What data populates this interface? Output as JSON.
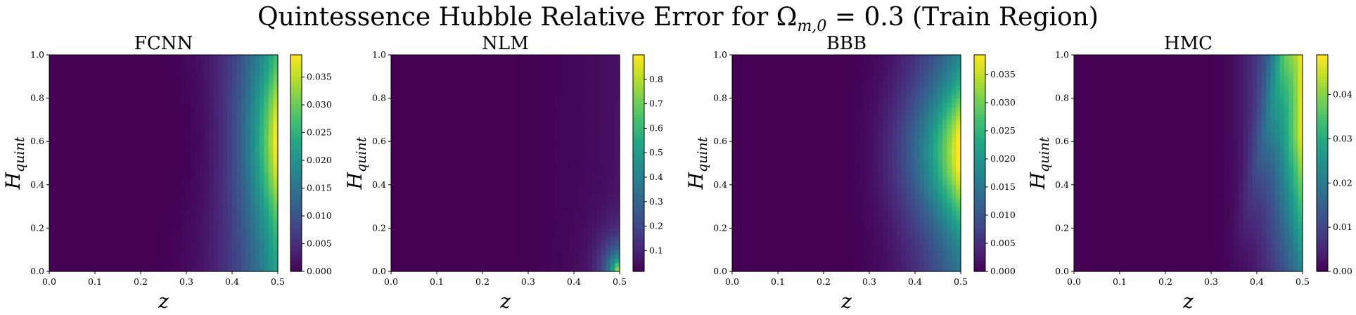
{
  "figure": {
    "title": "Quintessence Hubble Relative Error for Ω",
    "title_sub": "m,0",
    "title_rest": " = 0.3 (Train Region)"
  },
  "chart_data": [
    {
      "type": "heatmap",
      "title": "FCNN",
      "xlabel": "z",
      "ylabel": "H",
      "ylabel_sub": "quint",
      "xlim": [
        0,
        0.5
      ],
      "ylim": [
        0,
        1
      ],
      "xticks": [
        "0.0",
        "0.1",
        "0.2",
        "0.3",
        "0.4",
        "0.5"
      ],
      "yticks": [
        "0.0",
        "0.2",
        "0.4",
        "0.6",
        "0.8",
        "1.0"
      ],
      "colormap": "viridis",
      "colorbar": {
        "min": 0,
        "max": 0.039,
        "ticks": [
          "0.000",
          "0.005",
          "0.010",
          "0.015",
          "0.020",
          "0.025",
          "0.030",
          "0.035"
        ],
        "tick_values": [
          0,
          0.005,
          0.01,
          0.015,
          0.02,
          0.025,
          0.03,
          0.035
        ]
      },
      "pattern": "right-edge-bulge"
    },
    {
      "type": "heatmap",
      "title": "NLM",
      "xlabel": "z",
      "ylabel": "H",
      "ylabel_sub": "quint",
      "xlim": [
        0,
        0.5
      ],
      "ylim": [
        0,
        1
      ],
      "xticks": [
        "0.0",
        "0.1",
        "0.2",
        "0.3",
        "0.4",
        "0.5"
      ],
      "yticks": [
        "0.0",
        "0.2",
        "0.4",
        "0.6",
        "0.8",
        "1.0"
      ],
      "colormap": "viridis",
      "colorbar": {
        "min": 0.015,
        "max": 0.9,
        "ticks": [
          "0.1",
          "0.2",
          "0.3",
          "0.4",
          "0.5",
          "0.6",
          "0.7",
          "0.8"
        ],
        "tick_values": [
          0.1,
          0.2,
          0.3,
          0.4,
          0.5,
          0.6,
          0.7,
          0.8
        ]
      },
      "pattern": "bottom-right-corner"
    },
    {
      "type": "heatmap",
      "title": "BBB",
      "xlabel": "z",
      "ylabel": "H",
      "ylabel_sub": "quint",
      "xlim": [
        0,
        0.5
      ],
      "ylim": [
        0,
        1
      ],
      "xticks": [
        "0.0",
        "0.1",
        "0.2",
        "0.3",
        "0.4",
        "0.5"
      ],
      "yticks": [
        "0.0",
        "0.2",
        "0.4",
        "0.6",
        "0.8",
        "1.0"
      ],
      "colormap": "viridis",
      "colorbar": {
        "min": 0,
        "max": 0.0385,
        "ticks": [
          "0.000",
          "0.005",
          "0.010",
          "0.015",
          "0.020",
          "0.025",
          "0.030",
          "0.035"
        ],
        "tick_values": [
          0,
          0.005,
          0.01,
          0.015,
          0.02,
          0.025,
          0.03,
          0.035
        ]
      },
      "pattern": "right-edge-bulge-wide"
    },
    {
      "type": "heatmap",
      "title": "HMC",
      "xlabel": "z",
      "ylabel": "H",
      "ylabel_sub": "quint",
      "xlim": [
        0,
        0.5
      ],
      "ylim": [
        0,
        1
      ],
      "xticks": [
        "0.0",
        "0.1",
        "0.2",
        "0.3",
        "0.4",
        "0.5"
      ],
      "yticks": [
        "0.0",
        "0.2",
        "0.4",
        "0.6",
        "0.8",
        "1.0"
      ],
      "colormap": "viridis",
      "colorbar": {
        "min": 0,
        "max": 0.049,
        "ticks": [
          "0.00",
          "0.01",
          "0.02",
          "0.03",
          "0.04"
        ],
        "tick_values": [
          0,
          0.01,
          0.02,
          0.03,
          0.04
        ]
      },
      "pattern": "right-edge-band"
    }
  ]
}
